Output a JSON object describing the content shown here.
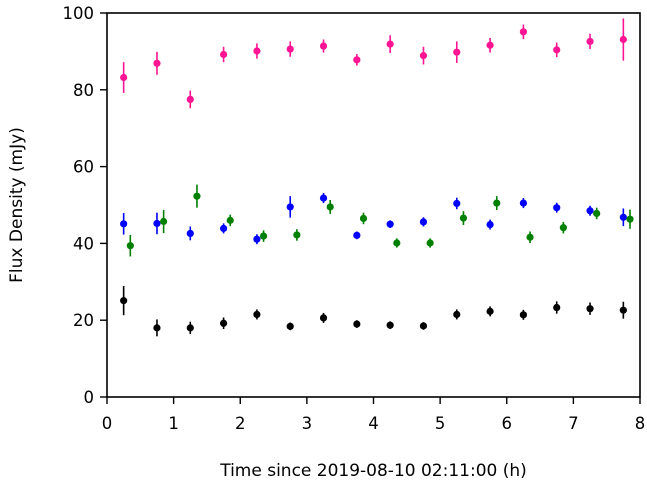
{
  "chart_data": {
    "type": "scatter",
    "xlabel": "Time since 2019-08-10 02:11:00 (h)",
    "ylabel": "Flux Density (mJy)",
    "xlim": [
      0,
      8
    ],
    "ylim": [
      0,
      100
    ],
    "xticks": [
      0,
      1,
      2,
      3,
      4,
      5,
      6,
      7,
      8
    ],
    "yticks": [
      0,
      20,
      40,
      60,
      80,
      100
    ],
    "grid": false,
    "legend": "none",
    "series": [
      {
        "color": "#ff1493",
        "x": [
          0.25,
          0.75,
          1.25,
          1.75,
          2.25,
          2.75,
          3.25,
          3.75,
          4.25,
          4.75,
          5.25,
          5.75,
          6.25,
          6.75,
          7.25,
          7.75
        ],
        "y": [
          83.2,
          86.9,
          77.5,
          89.2,
          90.1,
          90.6,
          91.4,
          87.8,
          91.9,
          88.9,
          89.8,
          91.6,
          95.1,
          90.4,
          92.6,
          93.1
        ],
        "yerr": [
          4.0,
          3.0,
          2.3,
          2.0,
          2.0,
          2.0,
          1.7,
          1.5,
          2.3,
          2.3,
          2.8,
          1.9,
          1.9,
          1.9,
          2.0,
          5.5
        ]
      },
      {
        "color": "#0000ff",
        "x": [
          0.25,
          0.75,
          1.25,
          1.75,
          2.25,
          2.75,
          3.25,
          3.75,
          4.25,
          4.75,
          5.25,
          5.75,
          6.25,
          6.75,
          7.25,
          7.75
        ],
        "y": [
          45.1,
          45.2,
          42.6,
          43.9,
          41.1,
          49.5,
          51.8,
          42.1,
          45.0,
          45.6,
          50.4,
          44.9,
          50.5,
          49.3,
          48.5,
          46.8
        ],
        "yerr": [
          2.8,
          2.8,
          1.8,
          1.3,
          1.3,
          2.8,
          1.3,
          1.0,
          1.0,
          1.2,
          1.5,
          1.3,
          1.3,
          1.3,
          1.3,
          2.3
        ]
      },
      {
        "color": "#008000",
        "x": [
          0.35,
          0.85,
          1.35,
          1.85,
          2.35,
          2.85,
          3.35,
          3.85,
          4.35,
          4.85,
          5.35,
          5.85,
          6.35,
          6.85,
          7.35,
          7.85
        ],
        "y": [
          39.4,
          45.7,
          52.3,
          46.0,
          41.9,
          42.2,
          49.5,
          46.5,
          40.1,
          40.1,
          46.6,
          50.5,
          41.6,
          44.1,
          47.8,
          46.3
        ],
        "yerr": [
          2.8,
          3.0,
          3.0,
          1.5,
          1.5,
          1.5,
          1.8,
          1.5,
          1.2,
          1.2,
          1.8,
          1.8,
          1.5,
          1.5,
          1.5,
          2.5
        ]
      },
      {
        "color": "#000000",
        "x": [
          0.25,
          0.75,
          1.25,
          1.75,
          2.25,
          2.75,
          3.25,
          3.75,
          4.25,
          4.75,
          5.25,
          5.75,
          6.25,
          6.75,
          7.25,
          7.75
        ],
        "y": [
          25.1,
          18.0,
          18.0,
          19.2,
          21.5,
          18.4,
          20.6,
          19.0,
          18.7,
          18.5,
          21.5,
          22.3,
          21.4,
          23.3,
          23.0,
          22.6
        ],
        "yerr": [
          3.8,
          2.2,
          1.6,
          1.5,
          1.3,
          1.0,
          1.3,
          1.0,
          1.0,
          1.0,
          1.3,
          1.3,
          1.3,
          1.6,
          1.6,
          2.2
        ]
      }
    ]
  }
}
